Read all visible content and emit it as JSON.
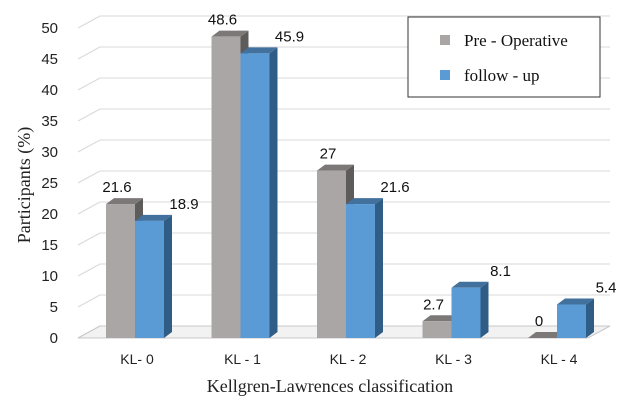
{
  "chart_data": {
    "type": "bar",
    "categories": [
      "KL-  0",
      "KL - 1",
      "KL - 2",
      "KL - 3",
      "KL - 4"
    ],
    "series": [
      {
        "name": "Pre - Operative",
        "values": [
          21.6,
          48.6,
          27,
          2.7,
          0
        ],
        "labels": [
          "21.6",
          "48.6",
          "27",
          "2.7",
          "0"
        ]
      },
      {
        "name": "follow - up",
        "values": [
          18.9,
          45.9,
          21.6,
          8.1,
          5.4
        ],
        "labels": [
          "18.9",
          "45.9",
          "21.6",
          "8.1",
          "5.4"
        ]
      }
    ],
    "title": "",
    "xlabel": "Kellgren-Lawrences classification",
    "ylabel": "Participants (%)",
    "ylim": [
      0,
      50
    ],
    "yticks": [
      "0",
      "5",
      "10",
      "15",
      "20",
      "25",
      "30",
      "35",
      "40",
      "45",
      "50"
    ],
    "grid": true,
    "legend_position": "top-right",
    "style": "3d-clustered-column",
    "colors": {
      "pre_front": "#aaa6a6",
      "pre_side": "#5e5b5b",
      "pre_top": "#7c7878",
      "fu_front": "#5b9bd5",
      "fu_side": "#2f5d85",
      "fu_top": "#41719c",
      "grid": "#d9d9d9",
      "floor": "#c8c8c8"
    }
  }
}
